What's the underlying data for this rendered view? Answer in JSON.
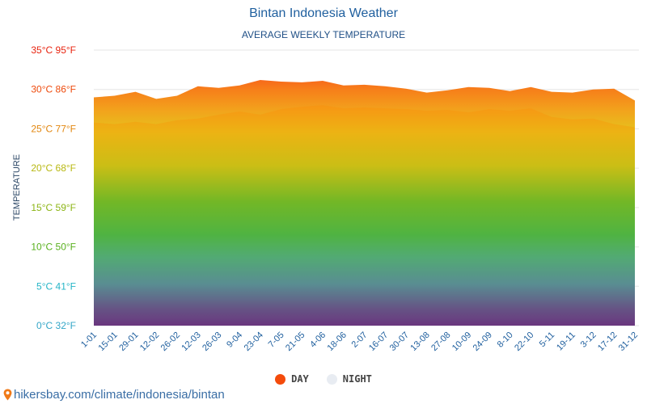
{
  "header": {
    "title": "Bintan Indonesia Weather",
    "subtitle": "AVERAGE WEEKLY TEMPERATURE"
  },
  "footer": {
    "url": "hikersbay.com/climate/indonesia/bintan"
  },
  "chart_data": {
    "type": "area",
    "title": "Bintan Indonesia Weather",
    "subtitle": "AVERAGE WEEKLY TEMPERATURE",
    "xlabel": "",
    "ylabel": "TEMPERATURE",
    "ylim": [
      0,
      35
    ],
    "y_ticks": [
      {
        "value": 0,
        "label": "0°C 32°F",
        "color": "#33a6c7"
      },
      {
        "value": 5,
        "label": "5°C 41°F",
        "color": "#25b5c7"
      },
      {
        "value": 10,
        "label": "10°C 50°F",
        "color": "#58b01d"
      },
      {
        "value": 15,
        "label": "15°C 59°F",
        "color": "#8cb516"
      },
      {
        "value": 20,
        "label": "20°C 68°F",
        "color": "#b8b812"
      },
      {
        "value": 25,
        "label": "25°C 77°F",
        "color": "#e2870f"
      },
      {
        "value": 30,
        "label": "30°C 86°F",
        "color": "#ee4a0c"
      },
      {
        "value": 35,
        "label": "35°C 95°F",
        "color": "#e8230f"
      }
    ],
    "categories": [
      "1-01",
      "15-01",
      "29-01",
      "12-02",
      "26-02",
      "12-03",
      "26-03",
      "9-04",
      "23-04",
      "7-05",
      "21-05",
      "4-06",
      "18-06",
      "2-07",
      "16-07",
      "30-07",
      "13-08",
      "27-08",
      "10-09",
      "24-09",
      "8-10",
      "22-10",
      "5-11",
      "19-11",
      "3-12",
      "17-12",
      "31-12"
    ],
    "series": [
      {
        "name": "DAY",
        "color": "#f44b0b",
        "values": [
          29.0,
          29.2,
          29.7,
          28.8,
          29.2,
          30.4,
          30.2,
          30.5,
          31.2,
          31.0,
          30.9,
          31.1,
          30.5,
          30.6,
          30.4,
          30.1,
          29.6,
          29.9,
          30.3,
          30.2,
          29.8,
          30.3,
          29.7,
          29.6,
          30.0,
          30.1,
          28.6
        ]
      },
      {
        "name": "NIGHT",
        "color": "#e8ecf2",
        "values": [
          25.8,
          25.6,
          25.9,
          25.6,
          26.1,
          26.3,
          26.8,
          27.2,
          26.8,
          27.5,
          27.8,
          28.0,
          27.6,
          27.7,
          27.6,
          27.5,
          27.3,
          27.4,
          27.1,
          27.5,
          27.3,
          27.6,
          26.5,
          26.2,
          26.3,
          25.6,
          25.2
        ]
      }
    ]
  }
}
